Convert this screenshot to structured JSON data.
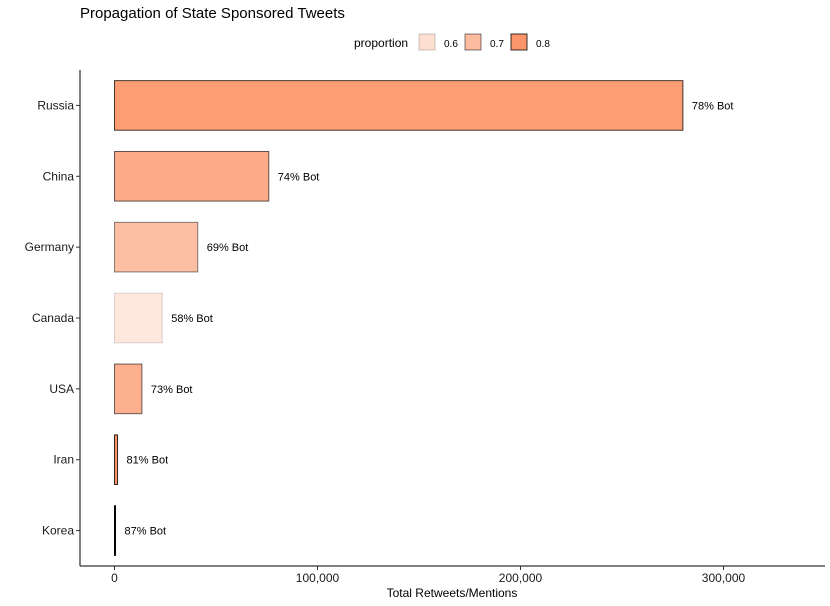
{
  "chart_data": {
    "type": "bar",
    "orientation": "horizontal",
    "title": "Propagation of State Sponsored Tweets",
    "xlabel": "Total Retweets/Mentions",
    "ylabel": "",
    "categories": [
      "Russia",
      "China",
      "Germany",
      "Canada",
      "USA",
      "Iran",
      "Korea"
    ],
    "values": [
      280000,
      76000,
      41000,
      23500,
      13500,
      1500,
      500
    ],
    "proportion": [
      0.78,
      0.74,
      0.69,
      0.58,
      0.73,
      0.81,
      0.87
    ],
    "labels": [
      "78% Bot",
      "74% Bot",
      "69% Bot",
      "58% Bot",
      "73% Bot",
      "81% Bot",
      "87% Bot"
    ],
    "xlim": [
      -17000,
      350000
    ],
    "xticks": [
      0,
      100000,
      200000,
      300000
    ],
    "xtick_labels": [
      "0",
      "100,000",
      "200,000",
      "300,000"
    ],
    "grid": false,
    "legend": {
      "title": "proportion",
      "placement": "top",
      "entries": [
        {
          "label": "0.6",
          "value": 0.6
        },
        {
          "label": "0.7",
          "value": 0.7
        },
        {
          "label": "0.8",
          "value": 0.8
        }
      ]
    },
    "colors": {
      "low": "#fee8de",
      "high": "#fc7b45",
      "range": [
        0.58,
        0.87
      ],
      "bar_border": "#000000"
    }
  }
}
